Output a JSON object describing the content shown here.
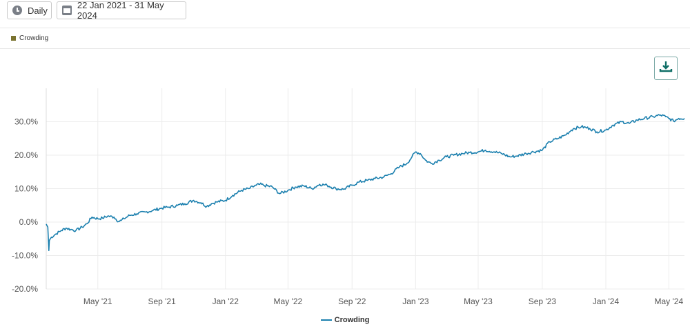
{
  "toolbar": {
    "period_label": "Daily",
    "date_range_label": "22 Jan 2021 - 31 May 2024",
    "period_icon": "clock-icon",
    "range_icon": "calendar-icon"
  },
  "download": {
    "icon": "download-icon"
  },
  "colors": {
    "series": "#1a7fae",
    "top_legend_swatch": "#7a7330",
    "grid": "#ececec"
  },
  "chart_data": {
    "type": "line",
    "title": "",
    "xlabel": "",
    "ylabel": "",
    "x_range": [
      "2021-01-22",
      "2024-05-31"
    ],
    "ylim": [
      -20,
      40
    ],
    "y_ticks": [
      -20,
      -10,
      0,
      10,
      20,
      30
    ],
    "y_tick_labels": [
      "-20.0%",
      "-10.0%",
      "0.0%",
      "10.0%",
      "20.0%",
      "30.0%"
    ],
    "x_ticks": [
      "2021-05-01",
      "2021-09-01",
      "2022-01-01",
      "2022-05-01",
      "2022-09-01",
      "2023-01-01",
      "2023-05-01",
      "2023-09-01",
      "2024-01-01",
      "2024-05-01"
    ],
    "x_tick_labels": [
      "May '21",
      "Sep '21",
      "Jan '22",
      "May '22",
      "Sep '22",
      "Jan '23",
      "May '23",
      "Sep '23",
      "Jan '24",
      "May '24"
    ],
    "grid": true,
    "legend": "bottom-center",
    "top_legend_label": "Crowding",
    "series": [
      {
        "name": "Crowding",
        "x": [
          "2021-01-22",
          "2021-01-25",
          "2021-01-27",
          "2021-01-28",
          "2021-02-01",
          "2021-02-10",
          "2021-02-20",
          "2021-03-01",
          "2021-03-10",
          "2021-03-20",
          "2021-04-01",
          "2021-04-10",
          "2021-04-20",
          "2021-05-01",
          "2021-05-10",
          "2021-05-20",
          "2021-06-01",
          "2021-06-10",
          "2021-06-15",
          "2021-06-20",
          "2021-07-01",
          "2021-07-15",
          "2021-08-01",
          "2021-08-15",
          "2021-09-01",
          "2021-09-15",
          "2021-10-01",
          "2021-10-15",
          "2021-11-01",
          "2021-11-15",
          "2021-11-26",
          "2021-12-05",
          "2021-12-15",
          "2022-01-01",
          "2022-01-15",
          "2022-02-01",
          "2022-02-15",
          "2022-03-01",
          "2022-03-08",
          "2022-03-15",
          "2022-04-01",
          "2022-04-15",
          "2022-05-01",
          "2022-05-15",
          "2022-06-01",
          "2022-06-16",
          "2022-07-01",
          "2022-07-15",
          "2022-08-01",
          "2022-08-15",
          "2022-09-01",
          "2022-09-15",
          "2022-10-01",
          "2022-10-15",
          "2022-11-01",
          "2022-11-15",
          "2022-12-01",
          "2022-12-15",
          "2022-12-25",
          "2023-01-01",
          "2023-01-10",
          "2023-01-20",
          "2023-01-25",
          "2023-02-01",
          "2023-02-15",
          "2023-03-01",
          "2023-03-15",
          "2023-04-01",
          "2023-04-15",
          "2023-05-01",
          "2023-05-15",
          "2023-06-01",
          "2023-06-15",
          "2023-07-01",
          "2023-07-15",
          "2023-08-01",
          "2023-08-15",
          "2023-09-01",
          "2023-09-15",
          "2023-10-01",
          "2023-10-15",
          "2023-10-27",
          "2023-11-01",
          "2023-11-15",
          "2023-12-01",
          "2023-12-15",
          "2024-01-01",
          "2024-01-15",
          "2024-02-01",
          "2024-02-15",
          "2024-03-01",
          "2024-03-15",
          "2024-04-01",
          "2024-04-15",
          "2024-04-25",
          "2024-05-01",
          "2024-05-10",
          "2024-05-20",
          "2024-05-31"
        ],
        "y": [
          -0.6,
          -1.5,
          -8.5,
          -5.5,
          -4.5,
          -3.5,
          -2.5,
          -1.8,
          -2.2,
          -2.5,
          -1.5,
          -0.5,
          1.5,
          1.0,
          1.2,
          1.8,
          1.5,
          0.2,
          0.5,
          1.0,
          2.0,
          2.5,
          3.0,
          3.5,
          4.2,
          4.5,
          5.0,
          5.5,
          6.5,
          5.8,
          4.7,
          5.5,
          6.0,
          6.5,
          8.0,
          9.5,
          10.0,
          11.0,
          11.3,
          11.0,
          10.5,
          8.5,
          9.5,
          10.5,
          10.8,
          10.0,
          11.3,
          11.0,
          10.0,
          9.8,
          11.0,
          12.0,
          12.5,
          13.0,
          13.5,
          14.5,
          16.5,
          17.5,
          19.5,
          21.0,
          20.5,
          18.5,
          18.0,
          17.5,
          18.5,
          19.5,
          20.0,
          20.5,
          20.8,
          21.0,
          21.5,
          21.0,
          20.5,
          19.5,
          19.8,
          20.5,
          21.0,
          21.5,
          24.0,
          25.0,
          26.0,
          27.5,
          28.0,
          28.5,
          28.0,
          27.0,
          27.5,
          29.0,
          30.0,
          29.5,
          30.5,
          31.0,
          31.5,
          32.0,
          31.5,
          31.0,
          30.2,
          31.0,
          31.0
        ]
      }
    ]
  }
}
